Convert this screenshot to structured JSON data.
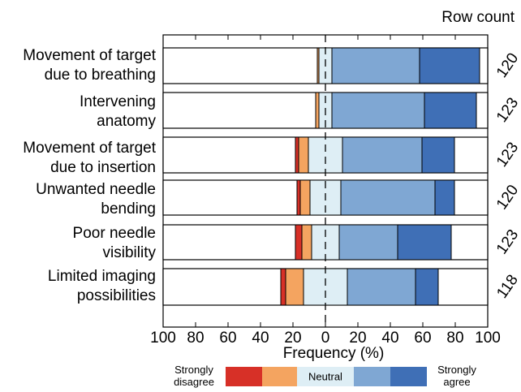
{
  "chart_data": {
    "type": "bar",
    "subtype": "diverging-stacked",
    "title": "",
    "xlabel": "Frequency (%)",
    "ylabel": "",
    "xlim": [
      -100,
      100
    ],
    "x_ticks": [
      "100",
      "80",
      "60",
      "40",
      "20",
      "0",
      "20",
      "40",
      "60",
      "80",
      "100"
    ],
    "x_tick_values": [
      -100,
      -80,
      -60,
      -40,
      -20,
      0,
      20,
      40,
      60,
      80,
      100
    ],
    "grid": false,
    "row_count_label": "Row count",
    "categories": [
      "Movement of target\ndue to breathing",
      "Intervening\nanatomy",
      "Movement of target\ndue to insertion",
      "Unwanted needle\nbending",
      "Poor needle\nvisibility",
      "Limited imaging\npossibilities"
    ],
    "row_counts": [
      "120",
      "123",
      "123",
      "120",
      "123",
      "118"
    ],
    "series": [
      {
        "name": "Strongly disagree",
        "color": "#d73027",
        "values": [
          0,
          0,
          2,
          2,
          4,
          3
        ]
      },
      {
        "name": "",
        "color": "#f4a460",
        "values": [
          1,
          2,
          6,
          6,
          6,
          11
        ]
      },
      {
        "name": "Neutral",
        "color": "#deeef5",
        "values": [
          8,
          8,
          21,
          19,
          17,
          27
        ]
      },
      {
        "name": "",
        "color": "#7fa7d3",
        "values": [
          54,
          57,
          49,
          58,
          36,
          42
        ]
      },
      {
        "name": "Strongly agree",
        "color": "#3f6fb6",
        "values": [
          37,
          32,
          20,
          12,
          33,
          14
        ]
      }
    ],
    "legend": {
      "position": "bottom",
      "left_label": "Strongly\ndisagree",
      "center_label": "Neutral",
      "right_label": "Strongly\nagree"
    }
  }
}
